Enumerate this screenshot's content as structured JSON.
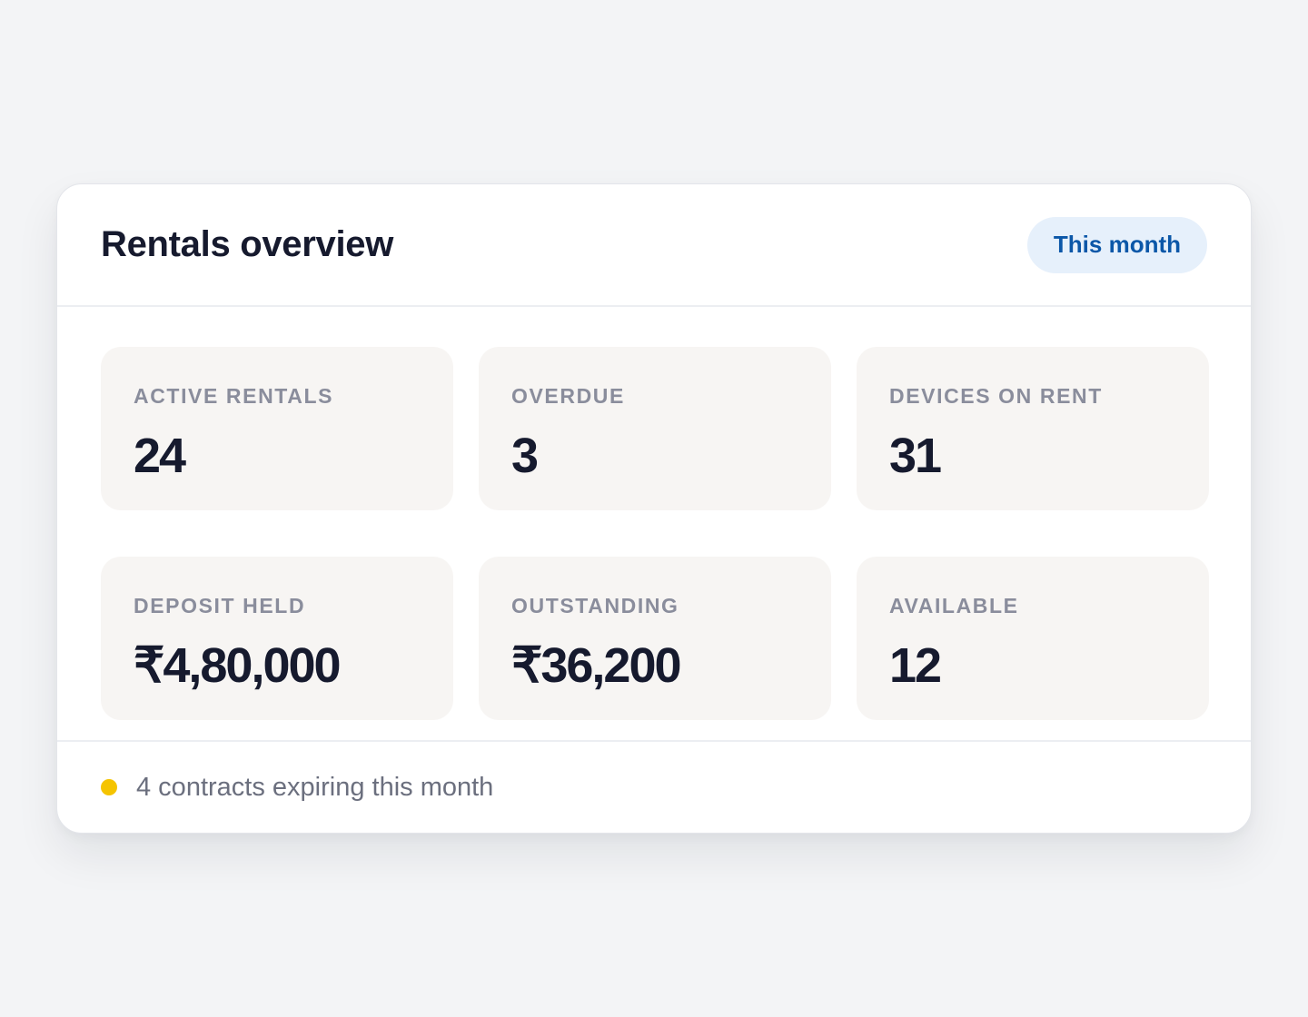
{
  "header": {
    "title": "Rentals overview",
    "period_label": "This month"
  },
  "stats": [
    {
      "label": "ACTIVE RENTALS",
      "value": "24"
    },
    {
      "label": "OVERDUE",
      "value": "3"
    },
    {
      "label": "DEVICES ON RENT",
      "value": "31"
    },
    {
      "label": "DEPOSIT HELD",
      "value": "₹4,80,000"
    },
    {
      "label": "OUTSTANDING",
      "value": "₹36,200"
    },
    {
      "label": "AVAILABLE",
      "value": "12"
    }
  ],
  "footer": {
    "status_text": "4 contracts expiring this month",
    "status_color": "#f5c400",
    "status_icon": "status-dot-icon"
  },
  "colors": {
    "accent": "#0b57a8",
    "accent_bg": "#e6f0fb",
    "title": "#161a2e",
    "label": "#8a8d9c",
    "tile_bg": "#f7f5f3",
    "page_bg": "#f3f4f6"
  }
}
